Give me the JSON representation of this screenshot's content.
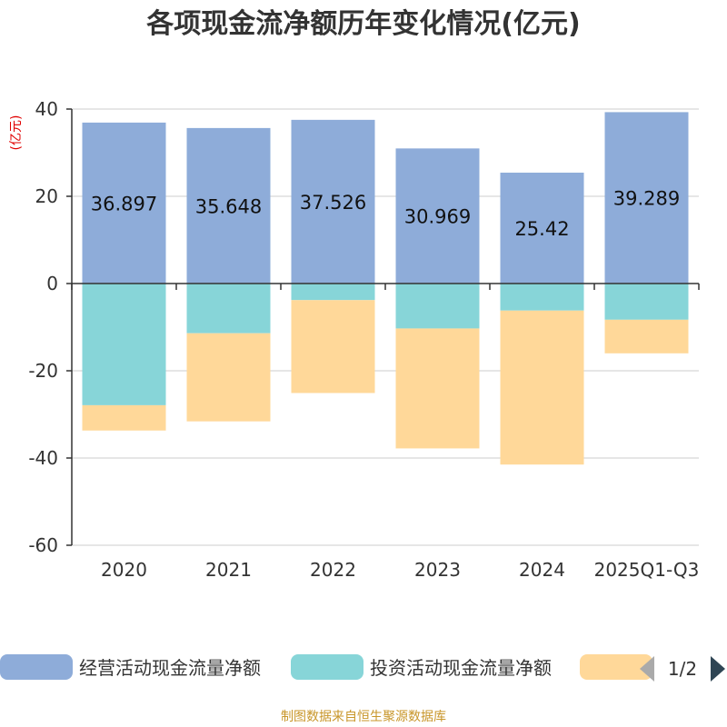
{
  "chart_data": {
    "type": "bar",
    "stacked": true,
    "title": "各项现金流净额历年变化情况(亿元)",
    "ylabel": "(亿元)",
    "xlabel": "",
    "ylim": [
      -60,
      40
    ],
    "yticks": [
      40,
      20,
      0,
      -20,
      -40,
      -60
    ],
    "categories": [
      "2020",
      "2021",
      "2022",
      "2023",
      "2024",
      "2025Q1-Q3"
    ],
    "series": [
      {
        "name": "经营活动现金流量净额",
        "color": "#8eacd9",
        "values": [
          36.897,
          35.648,
          37.526,
          30.969,
          25.42,
          39.289
        ],
        "labels": [
          "36.897",
          "35.648",
          "37.526",
          "30.969",
          "25.42",
          "39.289"
        ]
      },
      {
        "name": "投资活动现金流量净额",
        "color": "#87d5d8",
        "values": [
          -27.9,
          -11.4,
          -3.8,
          -10.3,
          -6.2,
          -8.3
        ]
      },
      {
        "name": "",
        "color": "#ffd899",
        "values": [
          -5.8,
          -20.2,
          -21.3,
          -27.5,
          -35.3,
          -7.7
        ]
      }
    ],
    "grid": true,
    "legend_position": "bottom"
  },
  "legend": {
    "pager": "1/2"
  },
  "footer": {
    "source": "制图数据来自恒生聚源数据库"
  }
}
